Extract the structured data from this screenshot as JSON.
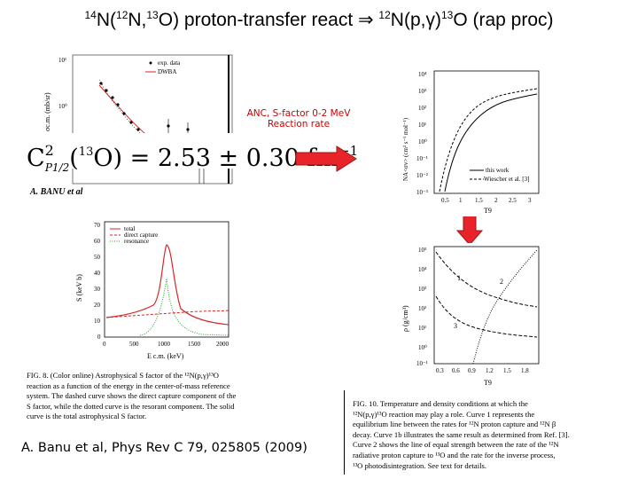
{
  "title": {
    "a_mass": "14",
    "a_el": "N(",
    "b_mass": "12",
    "b_el": "N,",
    "c_mass": "13",
    "c_rest": "O) proton-transfer react ⇒ ",
    "d_mass": "12",
    "d_el": "N(p,γ)",
    "e_mass": "13",
    "e_rest": "O (rap proc)"
  },
  "c2_equation": {
    "left": "C",
    "exp": "2",
    "sub": "P1/2",
    "nucleus_mass": "13",
    "nucleus": "O",
    "value": "2.53 ± 0.30 fm",
    "unit_exp": "−1"
  },
  "author_label": "A. BANU et al",
  "note": {
    "line1": "ANC, S-factor 0-2 MeV",
    "line2": "Reaction rate"
  },
  "dwba_plot": {
    "ylabel": "σc.m. (mb/sr)",
    "legend": [
      "exp. data",
      "DWBA"
    ],
    "yticks": [
      "10¹",
      "10⁰"
    ]
  },
  "sfactor_plot": {
    "ylabel": "S (keV b)",
    "xlabel": "E c.m. (keV)",
    "legend": [
      "total",
      "direct capture",
      "resonance"
    ],
    "yticks": [
      "0",
      "10",
      "20",
      "30",
      "40",
      "50",
      "60",
      "70"
    ],
    "xticks": [
      "0",
      "500",
      "1000",
      "1500",
      "2000"
    ]
  },
  "fig8_caption": [
    "FIG. 8.  (Color online) Astrophysical S factor of the ¹²N(p,γ)¹³O",
    "reaction as a function of the energy in the center-of-mass reference",
    "system. The dashed curve shows the direct capture component of the",
    "S factor, while the dotted curve is the resorant component. The solid",
    "curve is the total astrophysical S factor."
  ],
  "reference": "A. Banu et al, Phys Rev C 79, 025805 (2009)",
  "rate_plot": {
    "ylabel": "NA<σv> (cm³ s⁻¹ mol⁻¹)",
    "xlabel": "T9",
    "yticks": [
      "10⁴",
      "10³",
      "10²",
      "10¹",
      "10⁰",
      "10⁻¹",
      "10⁻²",
      "10⁻³"
    ],
    "xticks": [
      "0.5",
      "1",
      "1.5",
      "2",
      "2.5",
      "3"
    ],
    "legend": [
      "this work",
      "Wiescher et al. [3]"
    ]
  },
  "density_plot": {
    "ylabel": "ρ (g/cm³)",
    "xlabel": "T9",
    "yticks": [
      "10⁵",
      "10⁴",
      "10³",
      "10²",
      "10¹",
      "10⁰",
      "10⁻¹"
    ],
    "xticks": [
      "0.3",
      "0.6",
      "0.9",
      "1.2",
      "1.5",
      "1.8"
    ],
    "curve_labels": [
      "1",
      "2",
      "3"
    ]
  },
  "fig10_caption": [
    "FIG. 10.  Temperature and density conditions at which the",
    "¹²N(p,γ)¹³O reaction may play a role. Curve 1 represents the",
    "equilibrium line between the rates for ¹²N proton capture and ¹²N β",
    "decay. Curve 1b illustrates the same result as determined from Ref. [3].",
    "Curve 2 shows the line of equal strength between the rate of the ¹²N",
    "radiative proton capture to ¹³O and the rate for the inverse process,",
    "¹³O photodisintegration. See text for details."
  ],
  "colors": {
    "arrow": "#e8232a",
    "note": "#cc0000",
    "total": "#d62728",
    "dc": "#d62728",
    "res": "#2ca02c"
  }
}
